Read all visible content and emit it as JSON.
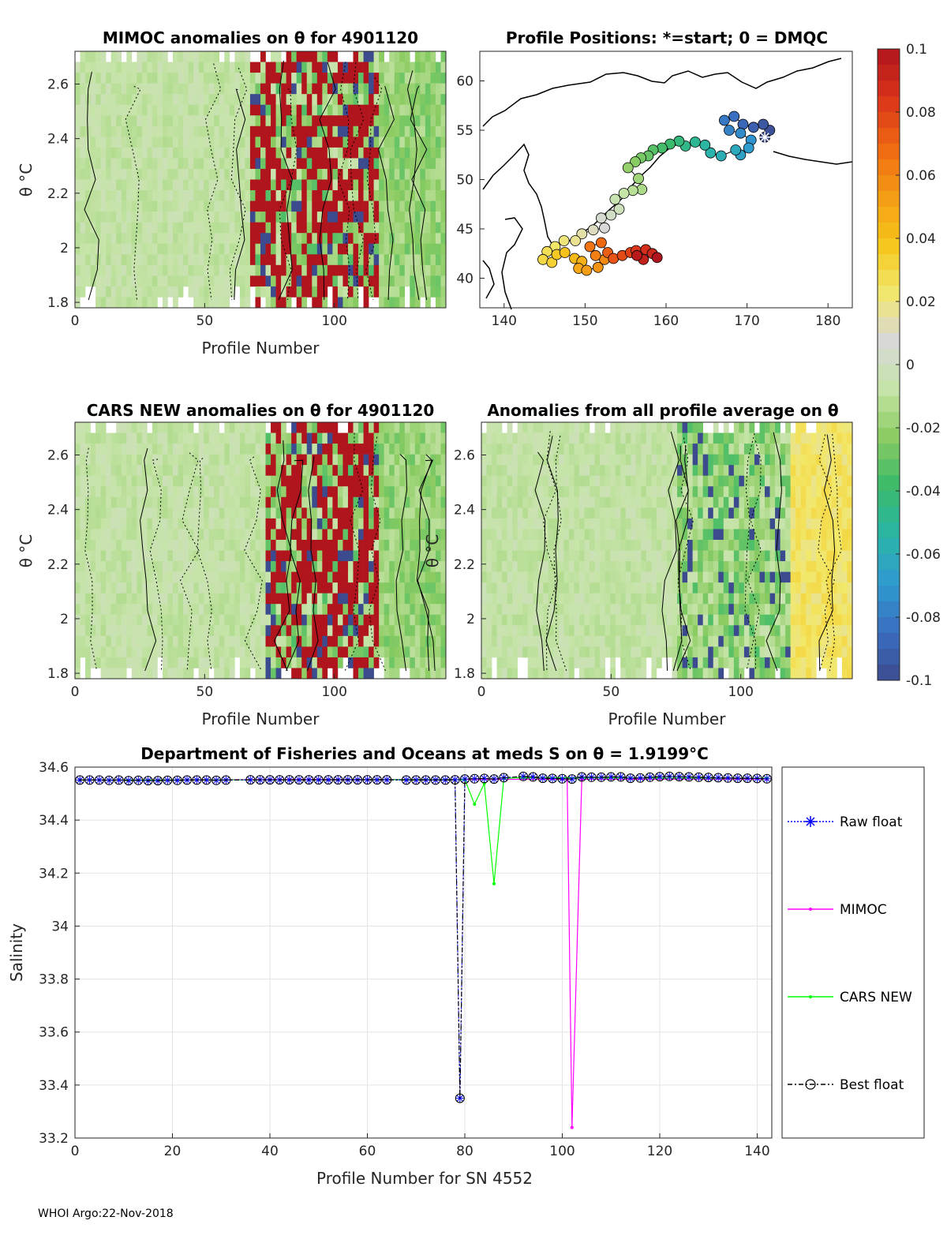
{
  "footer": "WHOI Argo:22-Nov-2018",
  "colors": {
    "background_gray": "#d8d8d8",
    "pos_hi": "#b0141c",
    "neg_hi": "#3d5aa0",
    "light_green": "#cfe6b0",
    "yellow": "#e6dc66",
    "raw_float": "#0000ff",
    "mimoc": "#ff00ff",
    "cars_new": "#00ff00",
    "best_float": "#000000"
  },
  "colorbar": {
    "min": -0.1,
    "max": 0.1,
    "tick_labels": [
      "0.1",
      "0.08",
      "0.06",
      "0.04",
      "0.02",
      "0",
      "-0.02",
      "-0.04",
      "-0.06",
      "-0.08",
      "-0.1"
    ],
    "stops": [
      "#3c4a8e",
      "#3a6ec0",
      "#2f9ad0",
      "#2ab5a6",
      "#3aba6a",
      "#8ccc62",
      "#c6e4a8",
      "#d8d8d8",
      "#f2e86a",
      "#f6c51a",
      "#f49a14",
      "#ee6612",
      "#d9331a",
      "#b0141c"
    ]
  },
  "chart_data": [
    {
      "type": "heatmap",
      "id": "mimoc",
      "title": "MIMOC anomalies on θ  for 4901120",
      "xlabel": "Profile Number",
      "ylabel": "θ °C",
      "xlim": [
        0,
        143
      ],
      "ylim": [
        1.78,
        2.72
      ],
      "xticks": [
        0,
        50,
        100
      ],
      "yticks": [
        1.8,
        2,
        2.2,
        2.4,
        2.6
      ],
      "ytick_labels": [
        "1.8",
        "2",
        "2.2",
        "2.4",
        "2.6"
      ]
    },
    {
      "type": "scatter",
      "id": "map",
      "title": "Profile Positions: *=start; 0 = DMQC",
      "xlim": [
        137,
        183
      ],
      "ylim": [
        37,
        63
      ],
      "xticks": [
        140,
        150,
        160,
        170,
        180
      ],
      "yticks": [
        40,
        45,
        50,
        55,
        60
      ],
      "track_description": "colored circles by profile order, start marked *",
      "track": [
        [
          172.2,
          54.3
        ],
        [
          172.8,
          55.0
        ],
        [
          172.0,
          55.6
        ],
        [
          170.8,
          55.3
        ],
        [
          169.5,
          55.6
        ],
        [
          168.4,
          56.4
        ],
        [
          167.2,
          56.0
        ],
        [
          167.8,
          55.0
        ],
        [
          169.2,
          54.7
        ],
        [
          170.5,
          54.0
        ],
        [
          170.2,
          53.2
        ],
        [
          169.2,
          52.5
        ],
        [
          168.6,
          53.0
        ],
        [
          166.8,
          52.4
        ],
        [
          165.5,
          52.7
        ],
        [
          164.8,
          53.5
        ],
        [
          163.6,
          53.8
        ],
        [
          162.4,
          53.4
        ],
        [
          161.6,
          53.9
        ],
        [
          160.5,
          53.6
        ],
        [
          159.5,
          53.2
        ],
        [
          158.4,
          53.0
        ],
        [
          157.8,
          52.4
        ],
        [
          156.9,
          52.2
        ],
        [
          156.2,
          51.8
        ],
        [
          155.3,
          51.2
        ],
        [
          156.6,
          50.1
        ],
        [
          157.0,
          49.0
        ],
        [
          155.9,
          48.9
        ],
        [
          154.8,
          48.6
        ],
        [
          153.7,
          48.0
        ],
        [
          154.2,
          47.0
        ],
        [
          153.2,
          46.4
        ],
        [
          152.0,
          46.1
        ],
        [
          152.4,
          45.1
        ],
        [
          151.0,
          44.9
        ],
        [
          149.6,
          44.5
        ],
        [
          148.8,
          43.8
        ],
        [
          147.4,
          43.8
        ],
        [
          146.3,
          43.2
        ],
        [
          145.3,
          42.7
        ],
        [
          144.8,
          41.9
        ],
        [
          145.9,
          41.6
        ],
        [
          146.5,
          42.4
        ],
        [
          147.5,
          42.6
        ],
        [
          148.7,
          42.0
        ],
        [
          149.6,
          41.7
        ],
        [
          149.2,
          41.0
        ],
        [
          150.2,
          40.8
        ],
        [
          151.6,
          41.1
        ],
        [
          152.4,
          41.9
        ],
        [
          151.3,
          42.3
        ],
        [
          150.6,
          43.2
        ],
        [
          152.0,
          43.6
        ],
        [
          152.8,
          42.6
        ],
        [
          153.5,
          42.0
        ],
        [
          154.6,
          42.3
        ],
        [
          155.6,
          42.6
        ],
        [
          156.3,
          42.8
        ],
        [
          157.5,
          42.9
        ],
        [
          158.3,
          42.5
        ],
        [
          157.2,
          41.9
        ],
        [
          156.4,
          42.3
        ],
        [
          158.9,
          42.1
        ]
      ]
    },
    {
      "type": "heatmap",
      "id": "cars",
      "title": "CARS NEW anomalies on θ for 4901120",
      "xlabel": "Profile Number",
      "ylabel": "θ °C",
      "xlim": [
        0,
        143
      ],
      "ylim": [
        1.78,
        2.72
      ],
      "xticks": [
        0,
        50,
        100
      ],
      "yticks": [
        1.8,
        2,
        2.2,
        2.4,
        2.6
      ],
      "ytick_labels": [
        "1.8",
        "2",
        "2.2",
        "2.4",
        "2.6"
      ]
    },
    {
      "type": "heatmap",
      "id": "avg",
      "title": "Anomalies from all profile average on θ",
      "xlabel": "Profile Number",
      "ylabel": "θ °C",
      "xlim": [
        0,
        143
      ],
      "ylim": [
        1.78,
        2.72
      ],
      "xticks": [
        0,
        50,
        100
      ],
      "yticks": [
        1.8,
        2,
        2.2,
        2.4,
        2.6
      ],
      "ytick_labels": [
        "1.8",
        "2",
        "2.2",
        "2.4",
        "2.6"
      ]
    },
    {
      "type": "line",
      "id": "salinity",
      "title": "Department of Fisheries and Oceans at meds S on θ = 1.9199°C",
      "xlabel": "Profile Number for SN 4552",
      "ylabel": "Salinity",
      "xlim": [
        0,
        143
      ],
      "ylim": [
        33.2,
        34.6
      ],
      "xticks": [
        0,
        20,
        40,
        60,
        80,
        100,
        120,
        140
      ],
      "yticks": [
        33.2,
        33.4,
        33.6,
        33.8,
        34,
        34.2,
        34.4,
        34.6
      ],
      "ytick_labels": [
        "33.2",
        "33.4",
        "33.6",
        "33.8",
        "34",
        "34.2",
        "34.4",
        "34.6"
      ],
      "legend": [
        "Raw float",
        "MIMOC",
        "CARS NEW",
        "Best float"
      ],
      "series": [
        {
          "name": "Raw float",
          "points": [
            [
              1,
              34.551
            ],
            [
              3,
              34.551
            ],
            [
              5,
              34.551
            ],
            [
              7,
              34.55
            ],
            [
              9,
              34.551
            ],
            [
              11,
              34.549
            ],
            [
              13,
              34.55
            ],
            [
              15,
              34.549
            ],
            [
              17,
              34.549
            ],
            [
              19,
              34.55
            ],
            [
              21,
              34.55
            ],
            [
              23,
              34.551
            ],
            [
              25,
              34.551
            ],
            [
              27,
              34.551
            ],
            [
              29,
              34.55
            ],
            [
              31,
              34.551
            ],
            [
              36,
              34.552
            ],
            [
              38,
              34.552
            ],
            [
              40,
              34.552
            ],
            [
              42,
              34.552
            ],
            [
              44,
              34.552
            ],
            [
              46,
              34.552
            ],
            [
              48,
              34.552
            ],
            [
              50,
              34.552
            ],
            [
              52,
              34.552
            ],
            [
              54,
              34.552
            ],
            [
              56,
              34.552
            ],
            [
              58,
              34.552
            ],
            [
              60,
              34.552
            ],
            [
              62,
              34.552
            ],
            [
              64,
              34.552
            ],
            [
              68,
              34.551
            ],
            [
              70,
              34.551
            ],
            [
              72,
              34.551
            ],
            [
              74,
              34.551
            ],
            [
              76,
              34.551
            ],
            [
              78,
              34.552
            ],
            [
              79,
              33.35
            ],
            [
              80,
              34.555
            ],
            [
              82,
              34.556
            ],
            [
              84,
              34.557
            ],
            [
              86,
              34.555
            ],
            [
              88,
              34.56
            ],
            [
              92,
              34.565
            ],
            [
              94,
              34.563
            ],
            [
              96,
              34.558
            ],
            [
              98,
              34.557
            ],
            [
              100,
              34.556
            ],
            [
              102,
              34.555
            ],
            [
              104,
              34.563
            ],
            [
              106,
              34.562
            ],
            [
              108,
              34.562
            ],
            [
              110,
              34.563
            ],
            [
              112,
              34.563
            ],
            [
              114,
              34.558
            ],
            [
              116,
              34.559
            ],
            [
              118,
              34.562
            ],
            [
              120,
              34.564
            ],
            [
              122,
              34.565
            ],
            [
              124,
              34.564
            ],
            [
              126,
              34.563
            ],
            [
              128,
              34.562
            ],
            [
              130,
              34.561
            ],
            [
              132,
              34.56
            ],
            [
              134,
              34.559
            ],
            [
              136,
              34.558
            ],
            [
              138,
              34.558
            ],
            [
              140,
              34.557
            ],
            [
              142,
              34.556
            ]
          ]
        },
        {
          "name": "MIMOC",
          "points": [
            [
              1,
              34.552
            ],
            [
              100,
              34.554
            ],
            [
              101,
              34.554
            ],
            [
              102,
              33.24
            ],
            [
              104,
              34.554
            ],
            [
              142,
              34.555
            ]
          ]
        },
        {
          "name": "CARS NEW",
          "points": [
            [
              1,
              34.551
            ],
            [
              80,
              34.553
            ],
            [
              82,
              34.46
            ],
            [
              84,
              34.538
            ],
            [
              86,
              34.16
            ],
            [
              88,
              34.558
            ],
            [
              92,
              34.56
            ],
            [
              142,
              34.558
            ]
          ]
        },
        {
          "name": "Best float",
          "points": [
            [
              1,
              34.551
            ],
            [
              3,
              34.551
            ],
            [
              5,
              34.551
            ],
            [
              7,
              34.55
            ],
            [
              9,
              34.551
            ],
            [
              11,
              34.549
            ],
            [
              13,
              34.55
            ],
            [
              15,
              34.549
            ],
            [
              17,
              34.549
            ],
            [
              19,
              34.55
            ],
            [
              21,
              34.55
            ],
            [
              23,
              34.551
            ],
            [
              25,
              34.551
            ],
            [
              27,
              34.551
            ],
            [
              29,
              34.55
            ],
            [
              31,
              34.551
            ],
            [
              36,
              34.552
            ],
            [
              38,
              34.552
            ],
            [
              40,
              34.552
            ],
            [
              42,
              34.552
            ],
            [
              44,
              34.552
            ],
            [
              46,
              34.552
            ],
            [
              48,
              34.552
            ],
            [
              50,
              34.552
            ],
            [
              52,
              34.552
            ],
            [
              54,
              34.552
            ],
            [
              56,
              34.552
            ],
            [
              58,
              34.552
            ],
            [
              60,
              34.552
            ],
            [
              62,
              34.552
            ],
            [
              64,
              34.552
            ],
            [
              68,
              34.551
            ],
            [
              70,
              34.551
            ],
            [
              72,
              34.551
            ],
            [
              74,
              34.551
            ],
            [
              76,
              34.551
            ],
            [
              78,
              34.552
            ],
            [
              79,
              33.35
            ],
            [
              80,
              34.555
            ],
            [
              82,
              34.556
            ],
            [
              84,
              34.557
            ],
            [
              86,
              34.555
            ],
            [
              88,
              34.56
            ],
            [
              92,
              34.565
            ],
            [
              94,
              34.563
            ],
            [
              96,
              34.558
            ],
            [
              98,
              34.557
            ],
            [
              100,
              34.556
            ],
            [
              102,
              34.555
            ],
            [
              104,
              34.563
            ],
            [
              106,
              34.562
            ],
            [
              108,
              34.562
            ],
            [
              110,
              34.563
            ],
            [
              112,
              34.563
            ],
            [
              114,
              34.558
            ],
            [
              116,
              34.559
            ],
            [
              118,
              34.562
            ],
            [
              120,
              34.564
            ],
            [
              122,
              34.565
            ],
            [
              124,
              34.564
            ],
            [
              126,
              34.563
            ],
            [
              128,
              34.562
            ],
            [
              130,
              34.561
            ],
            [
              132,
              34.56
            ],
            [
              134,
              34.559
            ],
            [
              136,
              34.558
            ],
            [
              138,
              34.558
            ],
            [
              140,
              34.557
            ],
            [
              142,
              34.556
            ]
          ]
        }
      ]
    }
  ]
}
